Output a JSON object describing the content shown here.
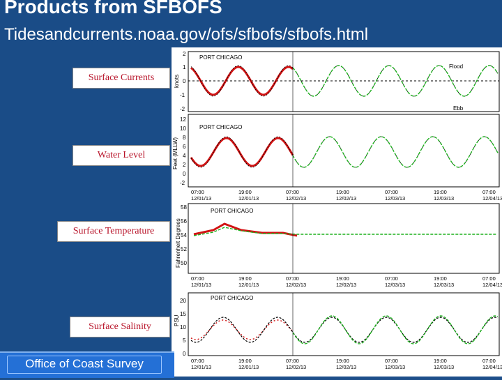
{
  "slide": {
    "title": "Products from SFBOFS",
    "subtitle": "Tidesandcurrents.noaa.gov/ofs/sfbofs/sfbofs.html",
    "labels": {
      "currents": "Surface Currents",
      "water_level": "Water Level",
      "temperature": "Surface Temperature",
      "salinity": "Surface Salinity"
    },
    "footer": "Office of Coast Survey"
  },
  "panels": {
    "currents": {
      "title": "PORT CHICAGO",
      "ylabel": "knots",
      "yticks": [
        "2",
        "1",
        "0",
        "-1",
        "-2",
        "-4"
      ],
      "flood": "Flood",
      "ebb": "Ebb"
    },
    "water_level": {
      "title": "PORT CHICAGO",
      "ylabel": "Feet (MLLW)",
      "yticks": [
        "12",
        "10",
        "8",
        "6",
        "4",
        "2",
        "0",
        "-2"
      ],
      "time_ticks": [
        {
          "t": "07:00",
          "d": "12/01/13"
        },
        {
          "t": "19:00",
          "d": "12/01/13"
        },
        {
          "t": "07:00",
          "d": "12/02/13"
        },
        {
          "t": "19:00",
          "d": "12/02/13"
        },
        {
          "t": "07:00",
          "d": "12/03/13"
        },
        {
          "t": "19:00",
          "d": "12/03/13"
        },
        {
          "t": "07:00",
          "d": "12/04/13"
        }
      ]
    },
    "temperature": {
      "title": "PORT CHICAGO",
      "ylabel": "Fahrenheit Degrees",
      "yticks": [
        "58",
        "56",
        "54",
        "52",
        "50"
      ]
    },
    "salinity": {
      "title": "PORT CHICAGO",
      "ylabel": "PSU",
      "yticks": [
        "20",
        "15",
        "10",
        "5",
        "0"
      ]
    }
  },
  "colors": {
    "observed": "#d11414",
    "forecast": "#1fb01f",
    "nowcast": "#000000"
  }
}
